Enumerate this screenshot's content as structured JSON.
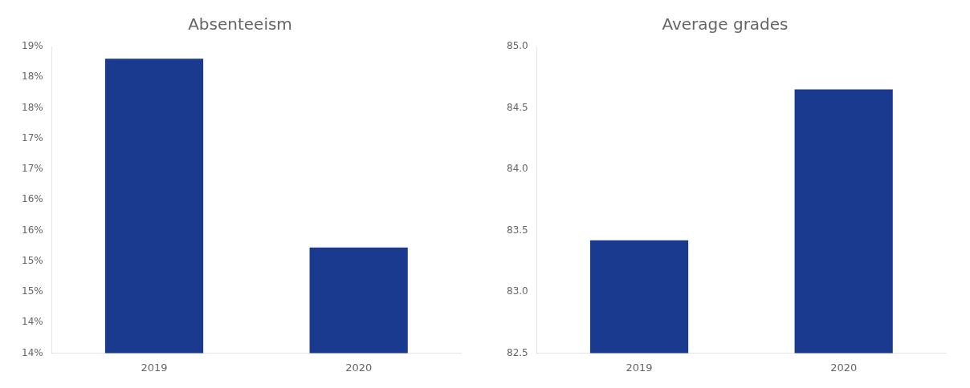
{
  "chart_data": [
    {
      "type": "bar",
      "title": "Absenteeism",
      "categories": [
        "2019",
        "2020"
      ],
      "values": [
        0.188,
        0.1572
      ],
      "color": "#1a3a8f",
      "ylim": [
        0.14,
        0.19
      ],
      "yticks": [
        {
          "value": 0.14,
          "label": "14%"
        },
        {
          "value": 0.145,
          "label": "14%"
        },
        {
          "value": 0.15,
          "label": "15%"
        },
        {
          "value": 0.155,
          "label": "15%"
        },
        {
          "value": 0.16,
          "label": "16%"
        },
        {
          "value": 0.165,
          "label": "16%"
        },
        {
          "value": 0.17,
          "label": "17%"
        },
        {
          "value": 0.175,
          "label": "17%"
        },
        {
          "value": 0.18,
          "label": "18%"
        },
        {
          "value": 0.185,
          "label": "18%"
        },
        {
          "value": 0.19,
          "label": "19%"
        }
      ],
      "grid": false
    },
    {
      "type": "bar",
      "title": "Average grades",
      "categories": [
        "2019",
        "2020"
      ],
      "values": [
        83.42,
        84.65
      ],
      "color": "#1a3a8f",
      "ylim": [
        82.5,
        85.0
      ],
      "yticks": [
        82.5,
        {
          "value": 83.0,
          "label": "83.0"
        },
        83.5,
        {
          "value": 84.0,
          "label": "84.0"
        },
        84.5,
        {
          "value": 85.0,
          "label": "85.0"
        }
      ],
      "grid": false
    }
  ]
}
